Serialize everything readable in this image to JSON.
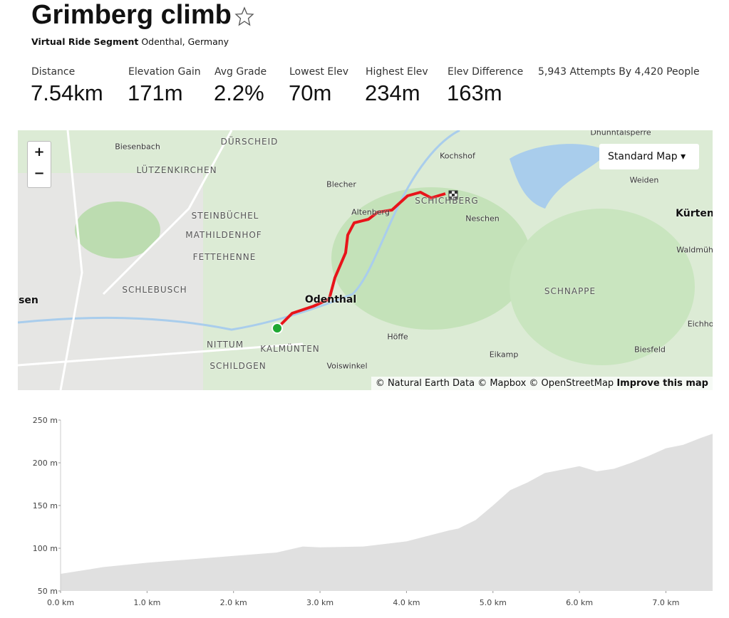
{
  "header": {
    "title": "Grimberg climb",
    "segment_type": "Virtual Ride Segment",
    "location": "Odenthal, Germany"
  },
  "stats": [
    {
      "label": "Distance",
      "value": "7.54km"
    },
    {
      "label": "Elevation Gain",
      "value": "171m"
    },
    {
      "label": "Avg Grade",
      "value": "2.2%"
    },
    {
      "label": "Lowest Elev",
      "value": "70m"
    },
    {
      "label": "Highest Elev",
      "value": "234m"
    },
    {
      "label": "Elev Difference",
      "value": "163m"
    }
  ],
  "attempts": "5,943 Attempts By 4,420 People",
  "map": {
    "style_button": "Standard Map",
    "zoom_in": "+",
    "zoom_out": "−",
    "labels": [
      "Dhünntalsperre",
      "DÜRSCHEID",
      "Biesenbach",
      "LÜTZENKIRCHEN",
      "Blecher",
      "Kochshof",
      "Weiden",
      "Kürten",
      "Altenberg",
      "SCHICHBERG",
      "Neschen",
      "STEINBÜCHEL",
      "MATHILDENHOF",
      "FETTEHENNE",
      "Waldmühle",
      "SCHLEBUSCH",
      "sen",
      "Odenthal",
      "SCHNAPPE",
      "Eichhof",
      "Höffe",
      "NITTUM",
      "KALMÜNTEN",
      "Biesfeld",
      "Eikamp",
      "SCHILDGEN",
      "Voiswinkel"
    ],
    "attribution": "© Natural Earth Data © Mapbox © OpenStreetMap",
    "improve": "Improve this map"
  },
  "chart_data": {
    "type": "area",
    "color": "#e0e0e0",
    "x": [
      0,
      0.5,
      1,
      1.5,
      2,
      2.5,
      2.8,
      3,
      3.5,
      4,
      4.5,
      4.6,
      4.8,
      5,
      5.2,
      5.4,
      5.6,
      5.8,
      6,
      6.2,
      6.4,
      6.6,
      6.8,
      7,
      7.2,
      7.4,
      7.54
    ],
    "values": [
      70,
      78,
      83,
      87,
      91,
      95,
      102,
      101,
      102,
      108,
      121,
      123,
      133,
      150,
      168,
      177,
      188,
      192,
      196,
      190,
      193,
      200,
      208,
      217,
      221,
      229,
      234
    ],
    "xlim": [
      0,
      7.54
    ],
    "ylim": [
      50,
      250
    ],
    "xticks": [
      {
        "value": 0,
        "label": "0.0 km"
      },
      {
        "value": 1,
        "label": "1.0 km"
      },
      {
        "value": 2,
        "label": "2.0 km"
      },
      {
        "value": 3,
        "label": "3.0 km"
      },
      {
        "value": 4,
        "label": "4.0 km"
      },
      {
        "value": 5,
        "label": "5.0 km"
      },
      {
        "value": 6,
        "label": "6.0 km"
      },
      {
        "value": 7,
        "label": "7.0 km"
      }
    ],
    "yticks": [
      {
        "value": 50,
        "label": "50 m"
      },
      {
        "value": 100,
        "label": "100 m"
      },
      {
        "value": 150,
        "label": "150 m"
      },
      {
        "value": 200,
        "label": "200 m"
      },
      {
        "value": 250,
        "label": "250 m"
      }
    ]
  }
}
